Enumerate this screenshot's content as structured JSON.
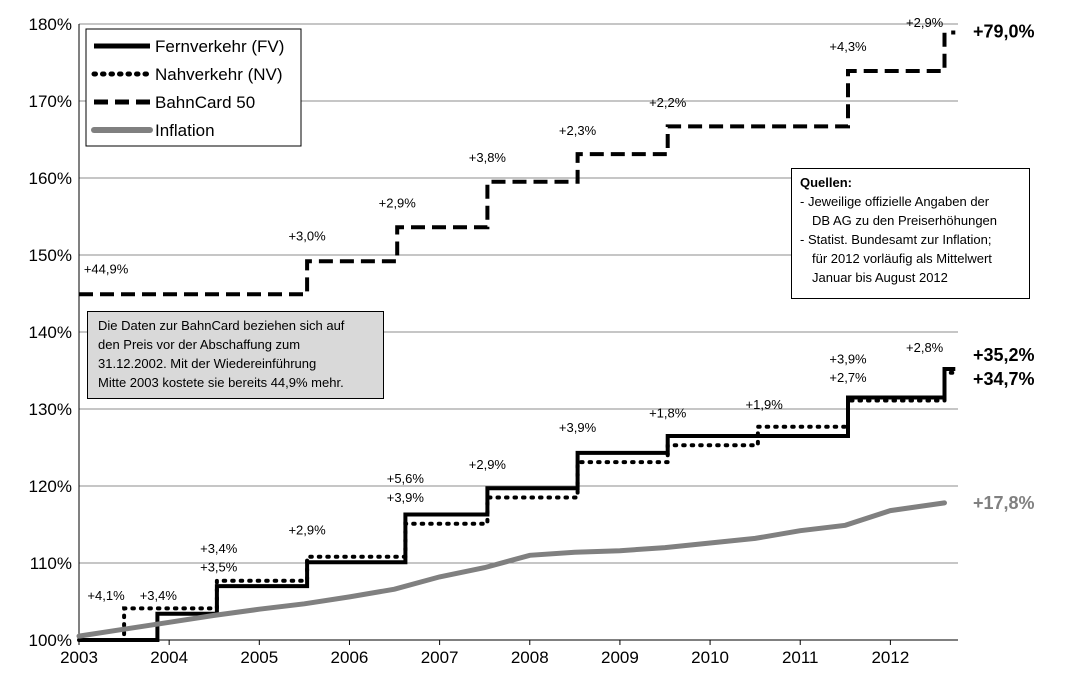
{
  "chart_data": {
    "type": "line",
    "step": true,
    "xlim": [
      2003,
      2012.75
    ],
    "ylim": [
      100,
      180
    ],
    "x_ticks": [
      "2003",
      "2004",
      "2005",
      "2006",
      "2007",
      "2008",
      "2009",
      "2010",
      "2011",
      "2012"
    ],
    "y_ticks": [
      "100%",
      "110%",
      "120%",
      "130%",
      "140%",
      "150%",
      "160%",
      "170%",
      "180%"
    ],
    "grid": "horizontal",
    "legend_position": "top-left",
    "series": [
      {
        "name": "Fernverkehr (FV)",
        "style": "solid",
        "color": "#000000",
        "points": [
          [
            2003,
            100
          ],
          [
            2003.87,
            103.4
          ],
          [
            2004.53,
            107.0
          ],
          [
            2005.53,
            110.1
          ],
          [
            2006.62,
            116.3
          ],
          [
            2007.53,
            119.7
          ],
          [
            2008.53,
            124.3
          ],
          [
            2009.53,
            126.5
          ],
          [
            2011.53,
            131.5
          ],
          [
            2012.6,
            135.2
          ]
        ]
      },
      {
        "name": "Nahverkehr (NV)",
        "style": "dotted",
        "color": "#000000",
        "points": [
          [
            2003,
            100
          ],
          [
            2003.5,
            104.1
          ],
          [
            2004.53,
            107.7
          ],
          [
            2005.53,
            110.8
          ],
          [
            2006.62,
            115.1
          ],
          [
            2007.53,
            118.5
          ],
          [
            2008.53,
            123.1
          ],
          [
            2009.53,
            125.3
          ],
          [
            2010.53,
            127.7
          ],
          [
            2011.53,
            131.1
          ],
          [
            2012.6,
            134.7
          ]
        ]
      },
      {
        "name": "BahnCard 50",
        "style": "dashed",
        "color": "#000000",
        "points": [
          [
            2003,
            144.9
          ],
          [
            2005.53,
            149.2
          ],
          [
            2006.53,
            153.6
          ],
          [
            2007.53,
            159.5
          ],
          [
            2008.53,
            163.1
          ],
          [
            2009.53,
            166.7
          ],
          [
            2011.53,
            173.9
          ],
          [
            2012.6,
            178.9
          ]
        ]
      },
      {
        "name": "Inflation",
        "style": "solid",
        "color": "#808080",
        "points": [
          [
            2003,
            100.5
          ],
          [
            2003.5,
            101.4
          ],
          [
            2004.0,
            102.3
          ],
          [
            2004.5,
            103.2
          ],
          [
            2005.0,
            104.0
          ],
          [
            2005.5,
            104.7
          ],
          [
            2006.0,
            105.6
          ],
          [
            2006.5,
            106.6
          ],
          [
            2007.0,
            108.2
          ],
          [
            2007.5,
            109.4
          ],
          [
            2008.0,
            111.0
          ],
          [
            2008.5,
            111.4
          ],
          [
            2009.0,
            111.6
          ],
          [
            2009.5,
            112.0
          ],
          [
            2010.0,
            112.6
          ],
          [
            2010.5,
            113.2
          ],
          [
            2011.0,
            114.2
          ],
          [
            2011.5,
            114.9
          ],
          [
            2012.0,
            116.8
          ],
          [
            2012.6,
            117.8
          ]
        ]
      }
    ],
    "annotations": [
      {
        "text": "+4,1%",
        "x": 2003.3,
        "y": 105.2
      },
      {
        "text": "+3,4%",
        "x": 2003.88,
        "y": 105.2
      },
      {
        "text": "+3,4%",
        "x": 2004.55,
        "y": 111.3
      },
      {
        "text": "+3,5%",
        "x": 2004.55,
        "y": 108.9
      },
      {
        "text": "+2,9%",
        "x": 2005.53,
        "y": 113.7
      },
      {
        "text": "+5,6%",
        "x": 2006.62,
        "y": 120.4
      },
      {
        "text": "+3,9%",
        "x": 2006.62,
        "y": 117.9
      },
      {
        "text": "+2,9%",
        "x": 2007.53,
        "y": 122.2
      },
      {
        "text": "+3,9%",
        "x": 2008.53,
        "y": 127.0
      },
      {
        "text": "+1,8%",
        "x": 2009.53,
        "y": 128.9
      },
      {
        "text": "+1,9%",
        "x": 2010.6,
        "y": 130.0
      },
      {
        "text": "+3,9%",
        "x": 2011.53,
        "y": 135.9
      },
      {
        "text": "+2,7%",
        "x": 2011.53,
        "y": 133.5
      },
      {
        "text": "+2,8%",
        "x": 2012.38,
        "y": 137.4
      },
      {
        "text": "+44,9%",
        "x": 2003.3,
        "y": 147.6
      },
      {
        "text": "+3,0%",
        "x": 2005.53,
        "y": 151.9
      },
      {
        "text": "+2,9%",
        "x": 2006.53,
        "y": 156.2
      },
      {
        "text": "+3,8%",
        "x": 2007.53,
        "y": 162.1
      },
      {
        "text": "+2,3%",
        "x": 2008.53,
        "y": 165.6
      },
      {
        "text": "+2,2%",
        "x": 2009.53,
        "y": 169.2
      },
      {
        "text": "+4,3%",
        "x": 2011.53,
        "y": 176.5
      },
      {
        "text": "+2,9%",
        "x": 2012.38,
        "y": 179.6
      }
    ],
    "end_labels": [
      {
        "text": "+79,0%",
        "y": 179.0,
        "color": "#000000"
      },
      {
        "text": "+35,2%",
        "y": 137.0,
        "color": "#000000"
      },
      {
        "text": "+34,7%",
        "y": 133.9,
        "color": "#000000"
      },
      {
        "text": "+17,8%",
        "y": 117.8,
        "color": "#808080"
      }
    ]
  },
  "note_box": {
    "lines": [
      "Die Daten zur BahnCard beziehen sich auf",
      "den Preis vor der Abschaffung zum",
      "31.12.2002. Mit der Wiedereinführung",
      "Mitte 2003 kostete sie bereits 44,9% mehr."
    ]
  },
  "sources_box": {
    "title": "Quellen:",
    "lines": [
      "- Jeweilige offizielle Angaben der",
      "DB AG zu den Preiserhöhungen",
      "- Statist. Bundesamt zur Inflation;",
      "für 2012 vorläufig als Mittelwert",
      "Januar bis August 2012"
    ]
  }
}
